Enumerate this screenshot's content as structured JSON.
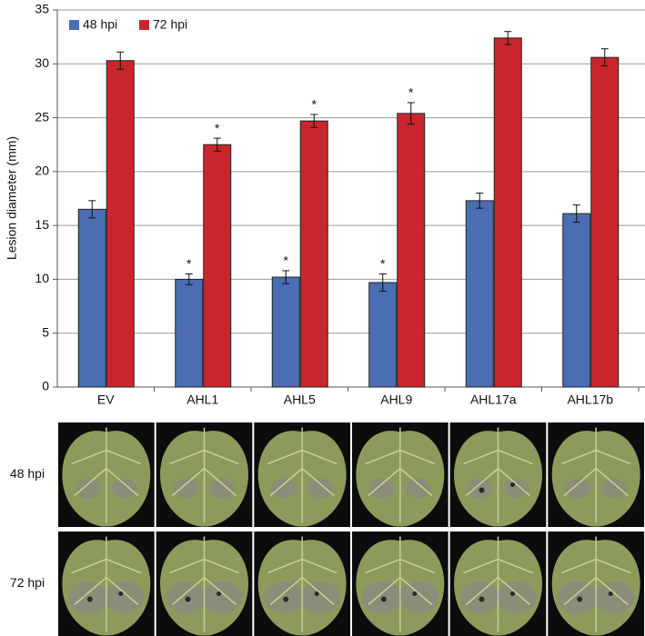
{
  "chart_data": {
    "type": "bar",
    "ylabel": "Lesion diameter (mm)",
    "categories": [
      "EV",
      "AHL1",
      "AHL5",
      "AHL9",
      "AHL17a",
      "AHL17b"
    ],
    "series": [
      {
        "name": "48 hpi",
        "color": "#4a6db3",
        "values": [
          16.5,
          10.0,
          10.2,
          9.7,
          17.3,
          16.1
        ],
        "errors": [
          0.8,
          0.5,
          0.6,
          0.8,
          0.7,
          0.8
        ],
        "significance": [
          null,
          "*",
          "*",
          "*",
          null,
          null
        ]
      },
      {
        "name": "72 hpi",
        "color": "#c8262c",
        "values": [
          30.3,
          22.5,
          24.7,
          25.4,
          32.4,
          30.6
        ],
        "errors": [
          0.8,
          0.6,
          0.6,
          1.0,
          0.6,
          0.8
        ],
        "significance": [
          null,
          "*",
          "*",
          "*",
          null,
          null
        ]
      }
    ],
    "ylim": [
      0,
      35
    ],
    "yticks": [
      0,
      5,
      10,
      15,
      20,
      25,
      30,
      35
    ],
    "grid": true,
    "legend": "top-left"
  },
  "photo_panel": {
    "rows": [
      "48 hpi",
      "72 hpi"
    ]
  }
}
